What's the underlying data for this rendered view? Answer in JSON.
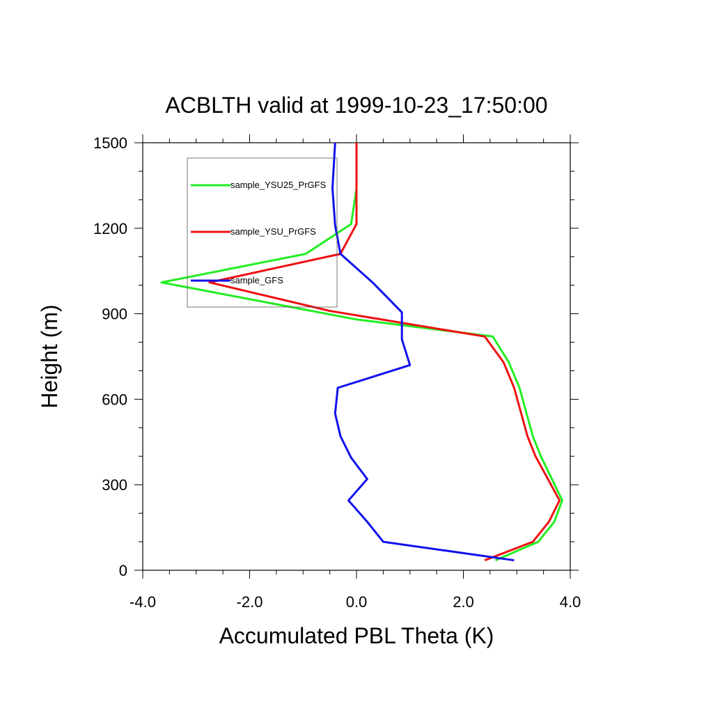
{
  "chart_data": {
    "type": "line",
    "title": "ACBLTH valid at 1999-10-23_17:50:00",
    "xlabel": "Accumulated PBL Theta (K)",
    "ylabel": "Height (m)",
    "xlim": [
      -4.0,
      4.0
    ],
    "ylim": [
      0,
      1500
    ],
    "xticks": [
      "-4.0",
      "-2.0",
      "0.0",
      "2.0",
      "4.0"
    ],
    "yticks": [
      "0",
      "300",
      "600",
      "900",
      "1200",
      "1500"
    ],
    "legend_position": "top-left",
    "series": [
      {
        "name": "sample_YSU25_PrGFS",
        "color": "#22ee22",
        "x": [
          2.6,
          3.4,
          3.7,
          3.85,
          3.45,
          3.3,
          3.05,
          2.85,
          2.55,
          0.0,
          -3.65,
          -0.95,
          -0.1,
          0.0,
          0.0
        ],
        "y": [
          35,
          100,
          170,
          245,
          400,
          470,
          640,
          730,
          820,
          880,
          1010,
          1110,
          1215,
          1340,
          1500
        ]
      },
      {
        "name": "sample_YSU_PrGFS",
        "color": "#ee1111",
        "x": [
          2.4,
          3.3,
          3.6,
          3.8,
          3.35,
          3.2,
          2.95,
          2.75,
          2.4,
          -0.5,
          -2.75,
          -0.3,
          0.0,
          0.0,
          0.0
        ],
        "y": [
          35,
          100,
          170,
          245,
          400,
          470,
          640,
          730,
          820,
          910,
          1010,
          1110,
          1215,
          1340,
          1500
        ]
      },
      {
        "name": "sample_GFS",
        "color": "#1111ee",
        "x": [
          2.95,
          0.5,
          0.2,
          -0.15,
          0.2,
          -0.1,
          -0.3,
          -0.4,
          -0.35,
          1.0,
          0.85,
          0.85,
          0.3,
          -0.3,
          -0.4,
          -0.45,
          -0.4
        ],
        "y": [
          35,
          100,
          170,
          245,
          320,
          395,
          470,
          550,
          640,
          720,
          810,
          905,
          1010,
          1110,
          1210,
          1340,
          1500
        ]
      }
    ]
  }
}
